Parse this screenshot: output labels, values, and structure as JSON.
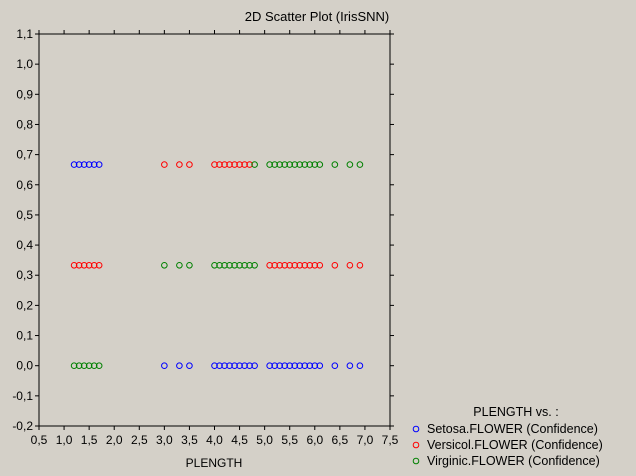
{
  "chart_data": {
    "type": "scatter",
    "title": "2D Scatter Plot (IrisSNN)",
    "xlabel": "PLENGTH",
    "ylabel": "",
    "xlim": [
      0.5,
      7.5
    ],
    "ylim": [
      -0.2,
      1.1
    ],
    "x_ticks": [
      "0,5",
      "1,0",
      "1,5",
      "2,0",
      "2,5",
      "3,0",
      "3,5",
      "4,0",
      "4,5",
      "5,0",
      "5,5",
      "6,0",
      "6,5",
      "7,0",
      "7,5"
    ],
    "y_ticks": [
      "-0,2",
      "-0,1",
      "0,0",
      "0,1",
      "0,2",
      "0,3",
      "0,4",
      "0,5",
      "0,6",
      "0,7",
      "0,8",
      "0,9",
      "1,0",
      "1,1"
    ],
    "grid": false,
    "legend_position": "bottom-right",
    "legend_title": "PLENGTH  vs. :",
    "series": [
      {
        "name": "Setosa.FLOWER (Confidence)",
        "color": "#0000ff",
        "points": [
          [
            1.2,
            0.667
          ],
          [
            1.3,
            0.667
          ],
          [
            1.4,
            0.667
          ],
          [
            1.5,
            0.667
          ],
          [
            1.6,
            0.667
          ],
          [
            1.7,
            0.667
          ],
          [
            3.0,
            0
          ],
          [
            3.3,
            0
          ],
          [
            3.5,
            0
          ],
          [
            4.0,
            0
          ],
          [
            4.1,
            0
          ],
          [
            4.2,
            0
          ],
          [
            4.3,
            0
          ],
          [
            4.4,
            0
          ],
          [
            4.5,
            0
          ],
          [
            4.6,
            0
          ],
          [
            4.7,
            0
          ],
          [
            4.8,
            0
          ],
          [
            5.1,
            0
          ],
          [
            5.2,
            0
          ],
          [
            5.3,
            0
          ],
          [
            5.4,
            0
          ],
          [
            5.5,
            0
          ],
          [
            5.6,
            0
          ],
          [
            5.7,
            0
          ],
          [
            5.8,
            0
          ],
          [
            5.9,
            0
          ],
          [
            6.0,
            0
          ],
          [
            6.1,
            0
          ],
          [
            6.4,
            0
          ],
          [
            6.7,
            0
          ],
          [
            6.9,
            0
          ]
        ]
      },
      {
        "name": "Versicol.FLOWER (Confidence)",
        "color": "#ff0000",
        "points": [
          [
            1.2,
            0.333
          ],
          [
            1.3,
            0.333
          ],
          [
            1.4,
            0.333
          ],
          [
            1.5,
            0.333
          ],
          [
            1.6,
            0.333
          ],
          [
            1.7,
            0.333
          ],
          [
            3.0,
            0.667
          ],
          [
            3.3,
            0.667
          ],
          [
            3.5,
            0.667
          ],
          [
            4.0,
            0.667
          ],
          [
            4.1,
            0.667
          ],
          [
            4.2,
            0.667
          ],
          [
            4.3,
            0.667
          ],
          [
            4.4,
            0.667
          ],
          [
            4.5,
            0.667
          ],
          [
            4.6,
            0.667
          ],
          [
            4.7,
            0.667
          ],
          [
            5.1,
            0.333
          ],
          [
            5.2,
            0.333
          ],
          [
            5.3,
            0.333
          ],
          [
            5.4,
            0.333
          ],
          [
            5.5,
            0.333
          ],
          [
            5.6,
            0.333
          ],
          [
            5.7,
            0.333
          ],
          [
            5.8,
            0.333
          ],
          [
            5.9,
            0.333
          ],
          [
            6.0,
            0.333
          ],
          [
            6.1,
            0.333
          ],
          [
            6.4,
            0.333
          ],
          [
            6.7,
            0.333
          ],
          [
            6.9,
            0.333
          ]
        ]
      },
      {
        "name": "Virginic.FLOWER (Confidence)",
        "color": "#008000",
        "points": [
          [
            1.2,
            0
          ],
          [
            1.3,
            0
          ],
          [
            1.4,
            0
          ],
          [
            1.5,
            0
          ],
          [
            1.6,
            0
          ],
          [
            1.7,
            0
          ],
          [
            3.0,
            0.333
          ],
          [
            3.3,
            0.333
          ],
          [
            3.5,
            0.333
          ],
          [
            4.0,
            0.333
          ],
          [
            4.1,
            0.333
          ],
          [
            4.2,
            0.333
          ],
          [
            4.3,
            0.333
          ],
          [
            4.4,
            0.333
          ],
          [
            4.5,
            0.333
          ],
          [
            4.6,
            0.333
          ],
          [
            4.7,
            0.333
          ],
          [
            4.8,
            0.333
          ],
          [
            4.8,
            0.667
          ],
          [
            5.1,
            0.667
          ],
          [
            5.2,
            0.667
          ],
          [
            5.3,
            0.667
          ],
          [
            5.4,
            0.667
          ],
          [
            5.5,
            0.667
          ],
          [
            5.6,
            0.667
          ],
          [
            5.7,
            0.667
          ],
          [
            5.8,
            0.667
          ],
          [
            5.9,
            0.667
          ],
          [
            6.0,
            0.667
          ],
          [
            6.1,
            0.667
          ],
          [
            6.4,
            0.667
          ],
          [
            6.7,
            0.667
          ],
          [
            6.9,
            0.667
          ]
        ]
      }
    ]
  }
}
